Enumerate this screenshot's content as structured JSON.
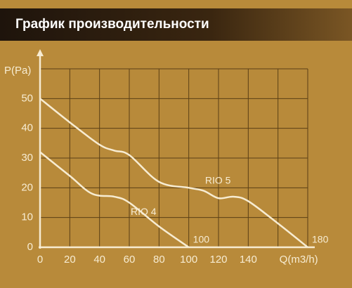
{
  "chart_data": {
    "type": "line",
    "title": "График производительности",
    "x_label": "Q(m3/h)",
    "y_label": "P(Pa)",
    "xlim": [
      0,
      180
    ],
    "ylim": [
      0,
      60
    ],
    "xticks": [
      0,
      20,
      40,
      60,
      80,
      100,
      120,
      140
    ],
    "yticks": [
      0,
      10,
      20,
      30,
      40,
      50
    ],
    "grid": true,
    "series": [
      {
        "name": "RIO 5",
        "color": "#f7ecd2",
        "x": [
          0,
          20,
          40,
          50,
          60,
          80,
          100,
          110,
          120,
          130,
          140,
          160,
          180
        ],
        "values": [
          50,
          42,
          34.5,
          32.5,
          31,
          22,
          20,
          19,
          16.5,
          17,
          15.5,
          8,
          0
        ]
      },
      {
        "name": "RIO 4",
        "color": "#f7ecd2",
        "x": [
          0,
          20,
          35,
          50,
          60,
          80,
          100
        ],
        "values": [
          32,
          24,
          18,
          17,
          15,
          7,
          0
        ]
      }
    ]
  }
}
